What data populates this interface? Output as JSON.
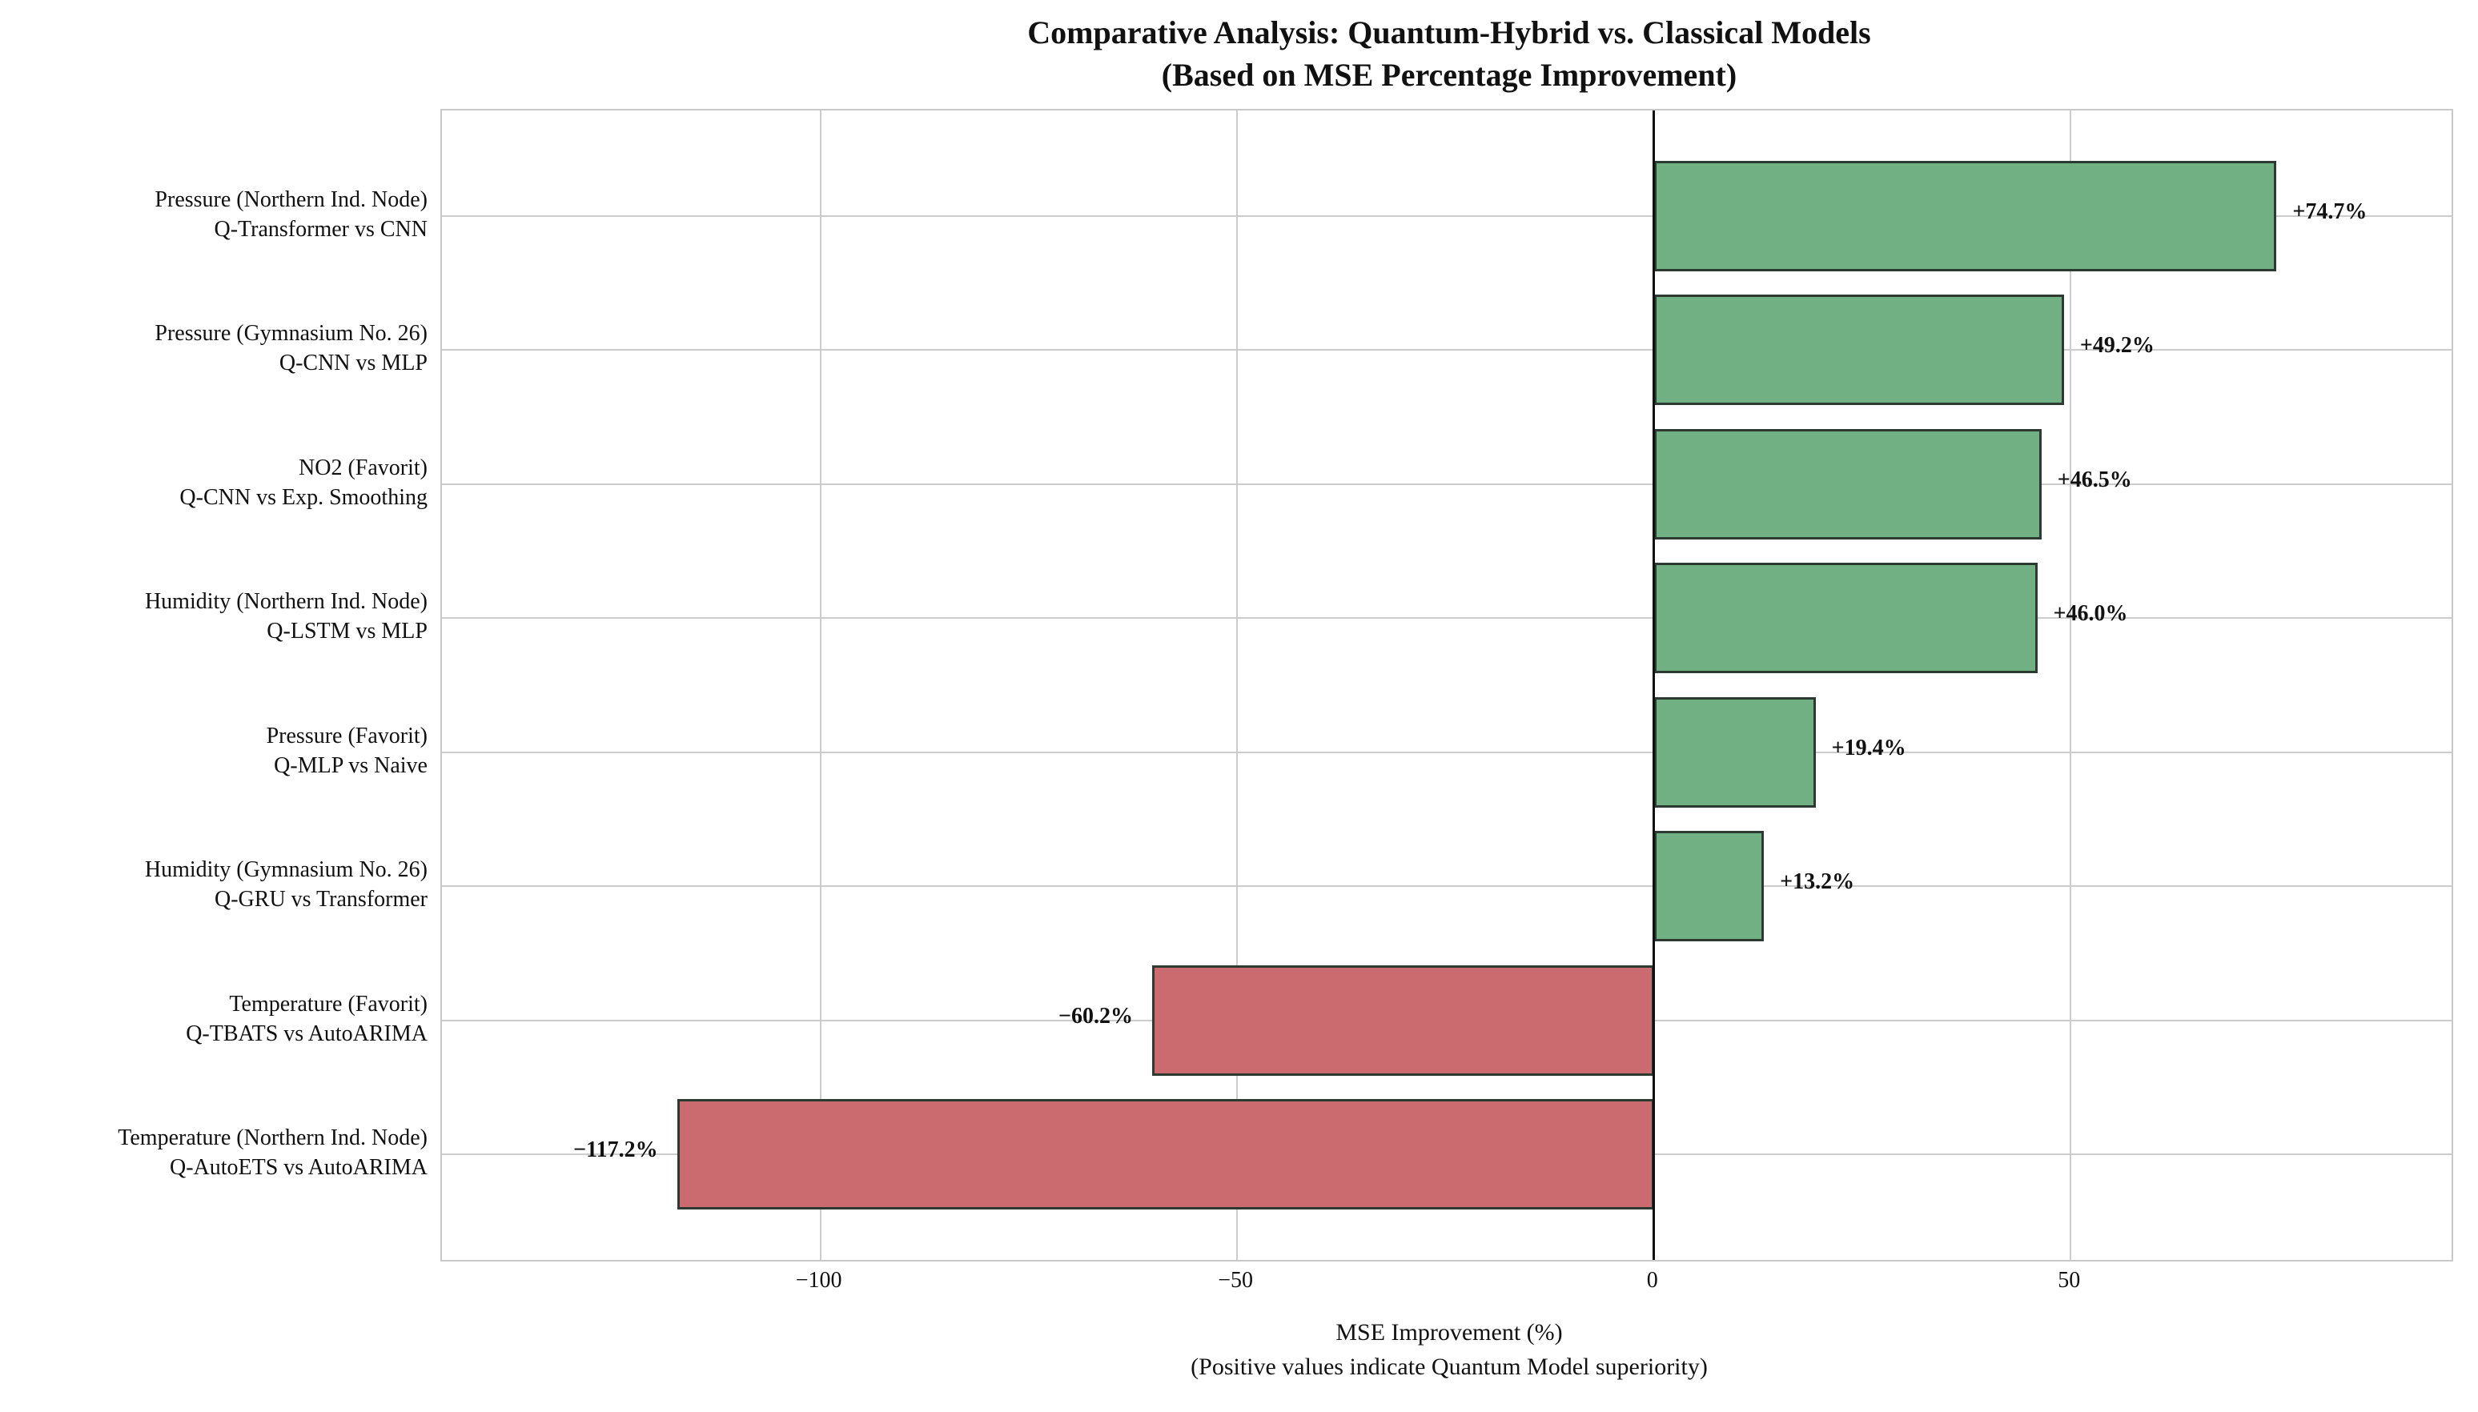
{
  "title": {
    "line1": "Comparative Analysis: Quantum-Hybrid vs. Classical Models",
    "line2": "(Based on MSE Percentage Improvement)"
  },
  "chart_data": {
    "type": "bar",
    "orientation": "horizontal",
    "title": "Comparative Analysis: Quantum-Hybrid vs. Classical Models",
    "subtitle": "(Based on MSE Percentage Improvement)",
    "categories": [
      [
        "Pressure (Northern Ind. Node)",
        "Q-Transformer vs CNN"
      ],
      [
        "Pressure (Gymnasium No. 26)",
        "Q-CNN vs MLP"
      ],
      [
        "NO2 (Favorit)",
        "Q-CNN vs Exp. Smoothing"
      ],
      [
        "Humidity (Northern Ind. Node)",
        "Q-LSTM vs MLP"
      ],
      [
        "Pressure (Favorit)",
        "Q-MLP vs Naive"
      ],
      [
        "Humidity (Gymnasium No. 26)",
        "Q-GRU vs Transformer"
      ],
      [
        "Temperature (Favorit)",
        "Q-TBATS vs AutoARIMA"
      ],
      [
        "Temperature (Northern Ind. Node)",
        "Q-AutoETS vs AutoARIMA"
      ]
    ],
    "values": [
      74.7,
      49.2,
      46.5,
      46.0,
      19.4,
      13.2,
      -60.2,
      -117.2
    ],
    "bar_labels": [
      "+74.7%",
      "+49.2%",
      "+46.5%",
      "+46.0%",
      "+19.4%",
      "+13.2%",
      "−60.2%",
      "−117.2%"
    ],
    "xlabel": "MSE Improvement (%)",
    "xlabel_note": "(Positive values indicate Quantum Model superiority)",
    "x_ticks": [
      {
        "value": -100,
        "label": "−100"
      },
      {
        "value": -50,
        "label": "−50"
      },
      {
        "value": 0,
        "label": "0"
      },
      {
        "value": 50,
        "label": "50"
      }
    ],
    "xlim": [
      -145.4,
      95.7
    ],
    "grid": true,
    "legend_position": "none",
    "positive_color": "#70b083",
    "negative_color": "#cb6b70",
    "bar_edge_color": "#2d3a31",
    "grid_color": "#cccccc",
    "zero_line_color": "#111111"
  }
}
